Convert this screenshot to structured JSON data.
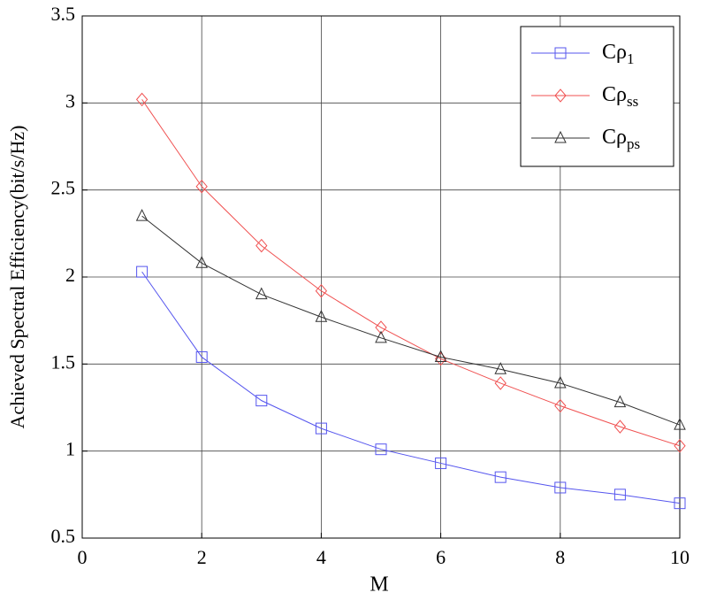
{
  "chart_data": {
    "type": "line",
    "xlabel": "M",
    "ylabel": "Achieved Spectral Efficiency(bit/s/Hz)",
    "x": [
      1,
      2,
      3,
      4,
      5,
      6,
      7,
      8,
      9,
      10
    ],
    "series": [
      {
        "name": "Cρ1",
        "color": "#5555ee",
        "marker": "square",
        "values": [
          2.03,
          1.54,
          1.29,
          1.13,
          1.01,
          0.93,
          0.85,
          0.79,
          0.75,
          0.7
        ]
      },
      {
        "name": "Cρss",
        "color": "#f05050",
        "marker": "diamond",
        "values": [
          3.02,
          2.52,
          2.18,
          1.92,
          1.71,
          1.53,
          1.39,
          1.26,
          1.14,
          1.03
        ]
      },
      {
        "name": "Cρps",
        "color": "#333333",
        "marker": "triangle",
        "values": [
          2.35,
          2.08,
          1.9,
          1.77,
          1.65,
          1.54,
          1.47,
          1.39,
          1.28,
          1.15
        ]
      }
    ],
    "xlim": [
      0,
      10
    ],
    "xticks": [
      0,
      2,
      4,
      6,
      8,
      10
    ],
    "ylim": [
      0.5,
      3.5
    ],
    "yticks": [
      0.5,
      1,
      1.5,
      2,
      2.5,
      3,
      3.5
    ],
    "grid": true,
    "legend": "upper right"
  }
}
